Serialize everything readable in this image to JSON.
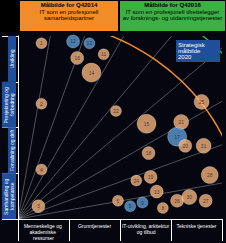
{
  "chart_data": {
    "type": "scatter",
    "x_bands": [
      "Menneskelige og akademiske ressurser",
      "Grunntjenester",
      "IT-utvikling, arkitektur og tilbud",
      "Tekniske tjenester"
    ],
    "y_bands": [
      "Utvikling",
      "Prosjektering og forbedring",
      "Forvaltning og drift",
      "Samhandling og kompetanse"
    ],
    "xlim": [
      0,
      100
    ],
    "ylim": [
      0,
      100
    ],
    "xticks": [
      0,
      25,
      50,
      75,
      100
    ],
    "yticks": [
      0,
      25,
      50,
      75,
      100
    ],
    "tick_labels": false,
    "grid": false,
    "points": {
      "labels": [
        "1",
        "12",
        "10",
        "11",
        "16",
        "14",
        "2",
        "22",
        "15",
        "21",
        "25",
        "17",
        "20",
        "31",
        "18",
        "24",
        "19",
        "28",
        "4",
        "3",
        "6",
        "5",
        "9",
        "13",
        "8",
        "26",
        "30",
        "27"
      ],
      "x": [
        11.5,
        27,
        35,
        42,
        29,
        36,
        11.5,
        48,
        63,
        80,
        90,
        78,
        82,
        91,
        64,
        58,
        65,
        94,
        11.5,
        10,
        49,
        55,
        61,
        68,
        71,
        78,
        84,
        92
      ],
      "values": [
        96,
        97,
        96,
        90,
        88,
        80,
        63,
        59,
        52,
        53,
        64,
        45,
        40,
        40,
        36,
        21,
        23,
        24,
        27,
        7,
        10,
        7,
        9,
        15,
        6,
        10,
        12,
        10
      ],
      "sizes": [
        3,
        4,
        3,
        3,
        4,
        7,
        3,
        3,
        7,
        5,
        5,
        7,
        4,
        5,
        4,
        3,
        4,
        6,
        3,
        4,
        3,
        3,
        3,
        4,
        3,
        4,
        5,
        4
      ],
      "colors": [
        "#f5b27a",
        "#5b9bd5",
        "#5b9bd5",
        "#f5b27a",
        "#f5b27a",
        "#f5b27a",
        "#f5b27a",
        "#f5b27a",
        "#f5b27a",
        "#f5b27a",
        "#f5b27a",
        "#5b9bd5",
        "#f5b27a",
        "#f5b27a",
        "#f5b27a",
        "#f5b27a",
        "#f5b27a",
        "#f5b27a",
        "#f5b27a",
        "#f5b27a",
        "#f5b27a",
        "#5b9bd5",
        "#5b9bd5",
        "#f5b27a",
        "#f5b27a",
        "#f5b27a",
        "#f5b27a",
        "#f5b27a"
      ]
    },
    "targets": [
      {
        "name": "Målbilde for Q42014",
        "description": "IT som en profesjonell samarbeidspartner",
        "radius": 110,
        "color": "#f28c28"
      },
      {
        "name": "Målbilde for Q42016",
        "description": "IT som en profesjonell tilrettelegger av forsknings- og utdanningstjenester",
        "radius": 135,
        "color": "#3cb043"
      }
    ],
    "annotation": "Strategisk målbilde 2020"
  }
}
